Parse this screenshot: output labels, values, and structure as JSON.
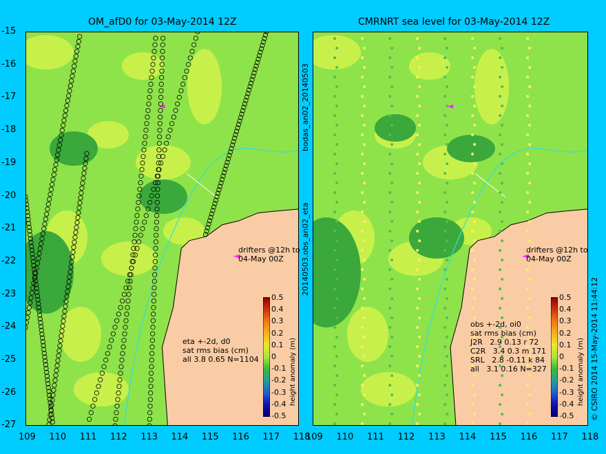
{
  "left_panel": {
    "title": "OM_afD0 for 03-May-2014 12Z",
    "y_ticks": [
      "-15",
      "-16",
      "-17",
      "-18",
      "-19",
      "-20",
      "-21",
      "-22",
      "-23",
      "-24",
      "-25",
      "-26",
      "-27"
    ],
    "x_ticks": [
      "109",
      "110",
      "111",
      "112",
      "113",
      "114",
      "115",
      "116",
      "117",
      "118"
    ],
    "drifter_note": "drifters @12h to\n04-May 00Z",
    "stats_note": "eta +-2d, d0\nsat rms bias (cm)\nall 3.8 0.65 N=1104",
    "colorbar_label": "height anomaly (m)"
  },
  "right_panel": {
    "title": "CMRNRT sea level  for 03-May-2014 12Z",
    "x_ticks": [
      "109",
      "110",
      "111",
      "112",
      "113",
      "114",
      "115",
      "116",
      "117",
      "118"
    ],
    "drifter_note": "drifters @12h to\n04-May 00Z",
    "stats_note": "obs +-2d, oi0\nsat rms bias (cm)\nJ2R   2.9 0.13 r 72\nC2R   3.4 0.3 m 171\nSRL   2.8 -0.11 k 84\nall   3.1 0.16 N=327",
    "colorbar_label": "height anomaly (m)"
  },
  "colorbar_ticks": [
    "0.5",
    "0.4",
    "0.3",
    "0.2",
    "0.1",
    "0",
    "-0.1",
    "-0.2",
    "-0.3",
    "-0.4",
    "-0.5"
  ],
  "side_label_top": "bodas_an02_20140503",
  "side_label_bottom": "20140503.obs_an02_eta",
  "copyright": "© CSIRO 2014   15-May-2014 11:44:12",
  "colors": {
    "background": "#00ccff",
    "land": "#f9cca5",
    "sea_mid": "#8ee34a",
    "sea_high": "#c8f04b",
    "sea_low": "#3aa83a",
    "drifter": "#ff22ff"
  }
}
